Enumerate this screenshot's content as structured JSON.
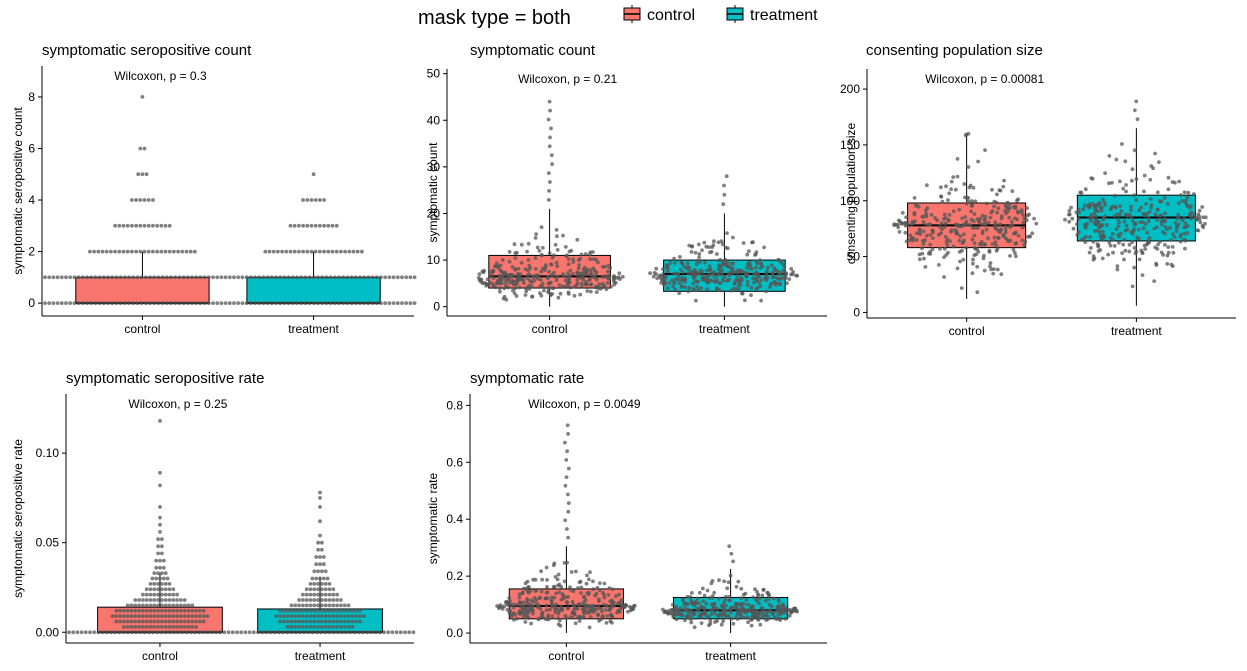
{
  "legend": {
    "title": "mask type = both",
    "items": [
      {
        "label": "control",
        "color": "#F8766D"
      },
      {
        "label": "treatment",
        "color": "#00BFC4"
      }
    ]
  },
  "chart_data": [
    {
      "type": "box",
      "title": "symptomatic seropositive count",
      "ylabel": "symptomatic seropositive count",
      "annotation": "Wilcoxon, p = 0.3",
      "ylim": [
        -0.5,
        9.2
      ],
      "yticks": [
        0,
        2,
        4,
        6,
        8
      ],
      "yticklabels": [
        "0",
        "2",
        "4",
        "6",
        "8"
      ],
      "categories": [
        "control",
        "treatment"
      ],
      "boxes": [
        {
          "category": "control",
          "q1": 0,
          "median": 0,
          "q3": 1,
          "whisker_low": 0,
          "whisker_high": 2,
          "max": 8
        },
        {
          "category": "treatment",
          "q1": 0,
          "median": 0,
          "q3": 1,
          "whisker_low": 0,
          "whisker_high": 2,
          "max": 5
        }
      ]
    },
    {
      "type": "box",
      "title": "symptomatic count",
      "ylabel": "symptomatic count",
      "annotation": "Wilcoxon, p = 0.21",
      "ylim": [
        -2,
        51
      ],
      "yticks": [
        0,
        10,
        20,
        30,
        40,
        50
      ],
      "yticklabels": [
        "0",
        "10",
        "20",
        "30",
        "40",
        "50"
      ],
      "categories": [
        "control",
        "treatment"
      ],
      "boxes": [
        {
          "category": "control",
          "q1": 4,
          "median": 6.5,
          "q3": 11,
          "whisker_low": 0,
          "whisker_high": 21,
          "max": 44
        },
        {
          "category": "treatment",
          "q1": 3.3,
          "median": 7,
          "q3": 10,
          "whisker_low": 0,
          "whisker_high": 20,
          "max": 28
        }
      ]
    },
    {
      "type": "box",
      "title": "consenting population size",
      "ylabel": "consenting population size",
      "annotation": "Wilcoxon, p = 0.00081",
      "ylim": [
        -5,
        218
      ],
      "yticks": [
        0,
        50,
        100,
        150,
        200
      ],
      "yticklabels": [
        "0",
        "50",
        "100",
        "150",
        "200"
      ],
      "categories": [
        "control",
        "treatment"
      ],
      "boxes": [
        {
          "category": "control",
          "q1": 58,
          "median": 78,
          "q3": 98,
          "whisker_low": 12,
          "whisker_high": 158,
          "max": 160
        },
        {
          "category": "treatment",
          "q1": 64,
          "median": 85,
          "q3": 105,
          "whisker_low": 6,
          "whisker_high": 165,
          "max": 189
        }
      ]
    },
    {
      "type": "box",
      "title": "symptomatic seropositive rate",
      "ylabel": "symptomatic seropositive rate",
      "annotation": "Wilcoxon, p = 0.25",
      "ylim": [
        -0.006,
        0.133
      ],
      "yticks": [
        0,
        0.05,
        0.1
      ],
      "yticklabels": [
        "0.00",
        "0.05",
        "0.10"
      ],
      "categories": [
        "control",
        "treatment"
      ],
      "boxes": [
        {
          "category": "control",
          "q1": 0,
          "median": 0,
          "q3": 0.014,
          "whisker_low": 0,
          "whisker_high": 0.033,
          "max": 0.118
        },
        {
          "category": "treatment",
          "q1": 0,
          "median": 0,
          "q3": 0.013,
          "whisker_low": 0,
          "whisker_high": 0.031,
          "max": 0.078
        }
      ]
    },
    {
      "type": "box",
      "title": "symptomatic rate",
      "ylabel": "symptomatic rate",
      "annotation": "Wilcoxon, p = 0.0049",
      "ylim": [
        -0.035,
        0.84
      ],
      "yticks": [
        0,
        0.2,
        0.4,
        0.6,
        0.8
      ],
      "yticklabels": [
        "0.0",
        "0.2",
        "0.4",
        "0.6",
        "0.8"
      ],
      "categories": [
        "control",
        "treatment"
      ],
      "boxes": [
        {
          "category": "control",
          "q1": 0.05,
          "median": 0.095,
          "q3": 0.155,
          "whisker_low": 0,
          "whisker_high": 0.305,
          "max": 0.73
        },
        {
          "category": "treatment",
          "q1": 0.05,
          "median": 0.08,
          "q3": 0.125,
          "whisker_low": 0,
          "whisker_high": 0.225,
          "max": 0.305
        }
      ]
    }
  ]
}
